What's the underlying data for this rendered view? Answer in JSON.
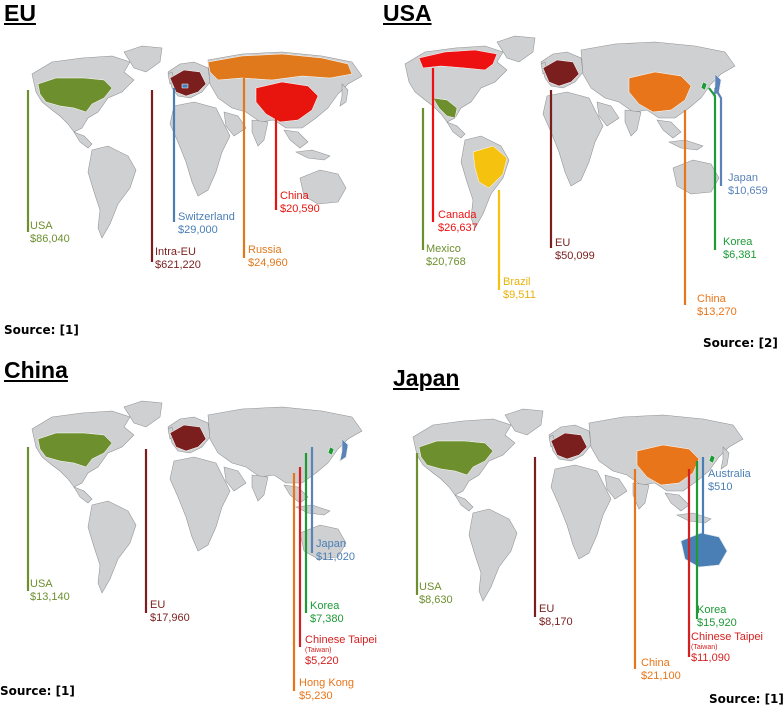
{
  "palette": {
    "land": "#cfd0d2",
    "border": "#8e9093",
    "usa": "#6e8f2e",
    "eu": "#7a1e1e",
    "switzerland": "#4a7fb5",
    "russia": "#e0791c",
    "china_red": "#e8150f",
    "canada": "#ee1111",
    "brazil": "#f5c20f",
    "japan": "#5b83b8",
    "korea": "#1e9a37",
    "china_orange": "#e8751a",
    "taipei": "#d42020",
    "hongkong": "#e8751a",
    "australia": "#4a7fb5"
  },
  "panels": [
    {
      "id": "eu",
      "title": "EU",
      "source": "Source: [1]",
      "labels": [
        {
          "key": "usa",
          "name": "USA",
          "value": "$86,040",
          "color": "usa"
        },
        {
          "key": "switzerland",
          "name": "Switzerland",
          "value": "$29,000",
          "color": "switzerland"
        },
        {
          "key": "intra_eu",
          "name": "Intra-EU",
          "value": "$621,220",
          "color": "eu"
        },
        {
          "key": "russia",
          "name": "Russia",
          "value": "$24,960",
          "color": "russia"
        },
        {
          "key": "china",
          "name": "China",
          "value": "$20,590",
          "color": "china_red"
        }
      ]
    },
    {
      "id": "usa",
      "title": "USA",
      "source": "Source: [2]",
      "labels": [
        {
          "key": "canada",
          "name": "Canada",
          "value": "$26,637",
          "color": "canada"
        },
        {
          "key": "mexico",
          "name": "Mexico",
          "value": "$20,768",
          "color": "usa"
        },
        {
          "key": "brazil",
          "name": "Brazil",
          "value": "$9,511",
          "color": "brazil"
        },
        {
          "key": "eu",
          "name": "EU",
          "value": "$50,099",
          "color": "eu"
        },
        {
          "key": "china",
          "name": "China",
          "value": "$13,270",
          "color": "china_orange"
        },
        {
          "key": "japan",
          "name": "Japan",
          "value": "$10,659",
          "color": "japan"
        },
        {
          "key": "korea",
          "name": "Korea",
          "value": "$6,381",
          "color": "korea"
        }
      ]
    },
    {
      "id": "china",
      "title": "China",
      "source": "Source: [1]",
      "labels": [
        {
          "key": "usa",
          "name": "USA",
          "value": "$13,140",
          "color": "usa"
        },
        {
          "key": "eu",
          "name": "EU",
          "value": "$17,960",
          "color": "eu"
        },
        {
          "key": "japan",
          "name": "Japan",
          "value": "$11,020",
          "color": "japan"
        },
        {
          "key": "korea",
          "name": "Korea",
          "value": "$7,380",
          "color": "korea"
        },
        {
          "key": "taipei",
          "name": "Chinese Taipei",
          "sub": "(Taiwan)",
          "value": "$5,220",
          "color": "taipei"
        },
        {
          "key": "hongkong",
          "name": "Hong Kong",
          "value": "$5,230",
          "color": "hongkong"
        }
      ]
    },
    {
      "id": "japan",
      "title": "Japan",
      "source": "Source: [1]",
      "labels": [
        {
          "key": "usa",
          "name": "USA",
          "value": "$8,630",
          "color": "usa"
        },
        {
          "key": "eu",
          "name": "EU",
          "value": "$8,170",
          "color": "eu"
        },
        {
          "key": "australia",
          "name": "Australia",
          "value": "$510",
          "color": "australia"
        },
        {
          "key": "korea",
          "name": "Korea",
          "value": "$15,920",
          "color": "korea"
        },
        {
          "key": "taipei",
          "name": "Chinese Taipei",
          "sub": "(Taiwan)",
          "value": "$11,090",
          "color": "taipei"
        },
        {
          "key": "china",
          "name": "China",
          "value": "$21,100",
          "color": "china_orange"
        }
      ]
    }
  ]
}
